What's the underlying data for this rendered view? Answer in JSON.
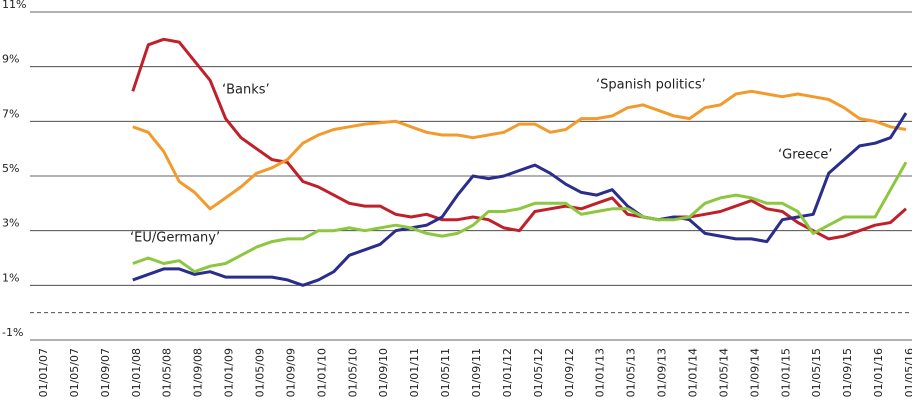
{
  "chart_data": {
    "type": "line",
    "categories": [
      "01/01/07",
      null,
      "01/05/07",
      null,
      "01/09/07",
      null,
      "01/01/08",
      null,
      "01/05/08",
      null,
      "01/09/08",
      null,
      "01/01/09",
      null,
      "01/05/09",
      null,
      "01/09/09",
      null,
      "01/01/10",
      null,
      "01/05/10",
      null,
      "01/09/10",
      null,
      "01/01/11",
      null,
      "01/05/11",
      null,
      "01/09/11",
      null,
      "01/01/12",
      null,
      "01/05/12",
      null,
      "01/09/12",
      null,
      "01/01/13",
      null,
      "01/05/13",
      null,
      "01/09/13",
      null,
      "01/01/14",
      null,
      "01/05/14",
      null,
      "01/09/14",
      null,
      "01/01/15",
      null,
      "01/05/15",
      null,
      "01/09/15",
      null,
      "01/01/16",
      null,
      "01/05/16"
    ],
    "series": [
      {
        "name": "Banks",
        "color": "#c0202a",
        "values": [
          null,
          null,
          null,
          null,
          null,
          null,
          8.1,
          9.8,
          10.0,
          9.9,
          9.2,
          8.5,
          7.1,
          6.4,
          6.0,
          5.6,
          5.5,
          4.8,
          4.6,
          4.3,
          4.0,
          3.9,
          3.9,
          3.6,
          3.5,
          3.6,
          3.4,
          3.4,
          3.5,
          3.4,
          3.1,
          3.0,
          3.7,
          3.8,
          3.9,
          3.8,
          4.0,
          4.2,
          3.6,
          3.5,
          3.4,
          3.5,
          3.5,
          3.6,
          3.7,
          3.9,
          4.1,
          3.8,
          3.7,
          3.3,
          3.0,
          2.7,
          2.8,
          3.0,
          3.2,
          3.3,
          3.8
        ]
      },
      {
        "name": "Spanish politics",
        "color": "#f39a2c",
        "values": [
          null,
          null,
          null,
          null,
          null,
          null,
          6.8,
          6.6,
          5.9,
          4.8,
          4.4,
          3.8,
          4.2,
          4.6,
          5.1,
          5.3,
          5.6,
          6.2,
          6.5,
          6.7,
          6.8,
          6.9,
          6.95,
          7.0,
          6.8,
          6.6,
          6.5,
          6.5,
          6.4,
          6.5,
          6.6,
          6.9,
          6.9,
          6.6,
          6.7,
          7.1,
          7.1,
          7.2,
          7.5,
          7.6,
          7.4,
          7.2,
          7.1,
          7.5,
          7.6,
          8.0,
          8.1,
          8.0,
          7.9,
          8.0,
          7.9,
          7.8,
          7.5,
          7.1,
          7.0,
          6.8,
          6.7
        ]
      },
      {
        "name": "Greece",
        "color": "#2a2d8c",
        "values": [
          null,
          null,
          null,
          null,
          null,
          null,
          1.2,
          1.4,
          1.6,
          1.6,
          1.4,
          1.5,
          1.3,
          1.3,
          1.3,
          1.3,
          1.2,
          1.0,
          1.2,
          1.5,
          2.1,
          2.3,
          2.5,
          3.0,
          3.1,
          3.2,
          3.5,
          4.3,
          5.0,
          4.9,
          5.0,
          5.2,
          5.4,
          5.1,
          4.7,
          4.4,
          4.3,
          4.5,
          3.9,
          3.5,
          3.4,
          3.5,
          3.4,
          2.9,
          2.8,
          2.7,
          2.7,
          2.6,
          3.4,
          3.5,
          3.6,
          5.1,
          5.6,
          6.1,
          6.2,
          6.4,
          7.3
        ]
      },
      {
        "name": "EU/Germany",
        "color": "#8dc63f",
        "values": [
          null,
          null,
          null,
          null,
          null,
          null,
          1.8,
          2.0,
          1.8,
          1.9,
          1.5,
          1.7,
          1.8,
          2.1,
          2.4,
          2.6,
          2.7,
          2.7,
          3.0,
          3.0,
          3.1,
          3.0,
          3.1,
          3.2,
          3.1,
          2.9,
          2.8,
          2.9,
          3.2,
          3.7,
          3.7,
          3.8,
          4.0,
          4.0,
          4.0,
          3.6,
          3.7,
          3.8,
          3.8,
          3.5,
          3.4,
          3.4,
          3.5,
          4.0,
          4.2,
          4.3,
          4.2,
          4.0,
          4.0,
          3.7,
          2.9,
          3.2,
          3.5,
          3.5,
          3.5,
          4.5,
          5.5
        ]
      }
    ],
    "annotations": [
      "‘Banks’",
      "‘Spanish politics’",
      "‘Greece’",
      "‘EU/Germany’"
    ],
    "ylim": [
      -1,
      11
    ],
    "yticks": [
      {
        "value": -1,
        "label": "-1%"
      },
      {
        "value": 1,
        "label": "1%"
      },
      {
        "value": 3,
        "label": "3%"
      },
      {
        "value": 5,
        "label": "5%"
      },
      {
        "value": 7,
        "label": "7%"
      },
      {
        "value": 9,
        "label": "9%"
      },
      {
        "value": 11,
        "label": "11%"
      }
    ],
    "reference_line": 0,
    "grid": true
  }
}
